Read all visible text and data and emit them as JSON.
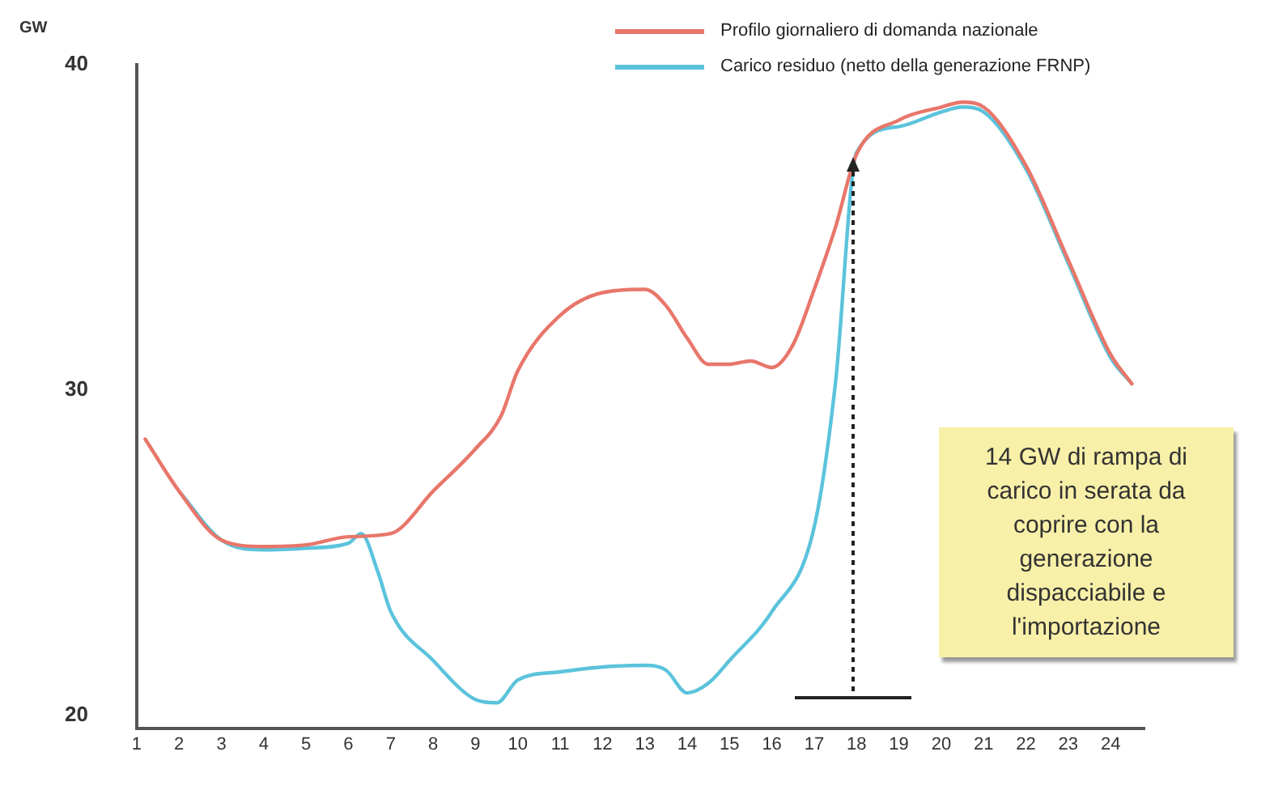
{
  "chart_data": {
    "type": "line",
    "ylabel": "GW",
    "xlim": [
      1,
      24.8
    ],
    "xticks": [
      1,
      2,
      3,
      4,
      5,
      6,
      7,
      8,
      9,
      10,
      11,
      12,
      13,
      14,
      15,
      16,
      17,
      18,
      19,
      20,
      21,
      22,
      23,
      24
    ],
    "ylim": [
      19.6,
      40
    ],
    "yticks": [
      20,
      30,
      40
    ],
    "legend": "top",
    "marker": "none",
    "line_style": "solid",
    "series": [
      {
        "name": "Profilo giornaliero di domanda nazionale",
        "color": "#e8766a",
        "x": [
          1.2,
          2,
          3,
          4,
          5,
          6,
          7,
          8,
          9,
          9.6,
          10,
          11,
          12,
          13,
          13.5,
          14,
          14.5,
          15,
          15.5,
          16,
          16.5,
          17,
          17.5,
          18,
          19,
          20,
          20.5,
          21,
          22,
          23,
          24,
          24.5
        ],
        "values": [
          28.5,
          26.9,
          25.4,
          25.2,
          25.25,
          25.5,
          25.6,
          26.9,
          28.2,
          29.2,
          30.6,
          32.3,
          33,
          33.1,
          32.6,
          31.6,
          30.8,
          30.8,
          30.9,
          30.7,
          31.4,
          33.1,
          35,
          37.25,
          38.3,
          38.7,
          38.85,
          38.7,
          36.9,
          34,
          31.1,
          30.2
        ]
      },
      {
        "name": "Carico residuo (netto della generazione FRNP)",
        "color": "#5bc3dc",
        "x": [
          2,
          3,
          4,
          5,
          6,
          6.3,
          6.7,
          7,
          8,
          9,
          9.5,
          10,
          11,
          12,
          13,
          13.5,
          14,
          14.5,
          15,
          16,
          17,
          17.5,
          18,
          19,
          20,
          20.5,
          21,
          22,
          23,
          24,
          24.5
        ],
        "values": [
          26.9,
          25.4,
          25.1,
          25.15,
          25.3,
          25.6,
          24.4,
          23.2,
          21.7,
          20.5,
          20.4,
          21.1,
          21.35,
          21.5,
          21.55,
          21.4,
          20.7,
          21,
          21.7,
          23.2,
          25.8,
          30.2,
          37.3,
          38.1,
          38.55,
          38.7,
          38.55,
          36.8,
          33.9,
          31,
          30.2
        ]
      }
    ],
    "annotations": [
      "14 GW di rampa di carico in serata da coprire con la generazione dispacciabile e l'importazione"
    ]
  }
}
